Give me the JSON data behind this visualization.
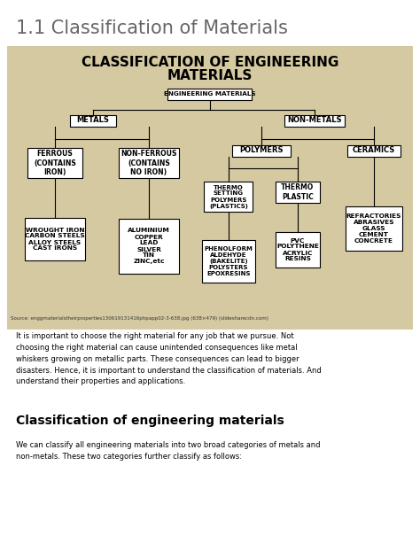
{
  "title": "1.1 Classification of Materials",
  "title_color": "#666666",
  "title_fontsize": 15,
  "diagram_bg": "#d4c9a0",
  "diagram_title_line1": "CLASSIFICATION OF ENGINEERING",
  "diagram_title_line2": "MATERIALS",
  "diagram_title_fontsize": 11,
  "source_text": "Source: enggmaterialstheirproperties130619131416phpapp02-3-638.jpg (638×479) (slidesharecdn.com)",
  "para_text": "It is important to choose the right material for any job that we pursue. Not\nchoosing the right material can cause unintended consequences like metal\nwhiskers growing on metallic parts. These consequences can lead to bigger\ndisasters. Hence, it is important to understand the classification of materials. And\nunderstand their properties and applications.",
  "section_title": "Classification of engineering materials",
  "section_para": "We can classify all engineering materials into two broad categories of metals and\nnon-metals. These two categories further classify as follows:",
  "bg_color": "#ffffff",
  "diagram_bg_color": "#d4c9a0"
}
